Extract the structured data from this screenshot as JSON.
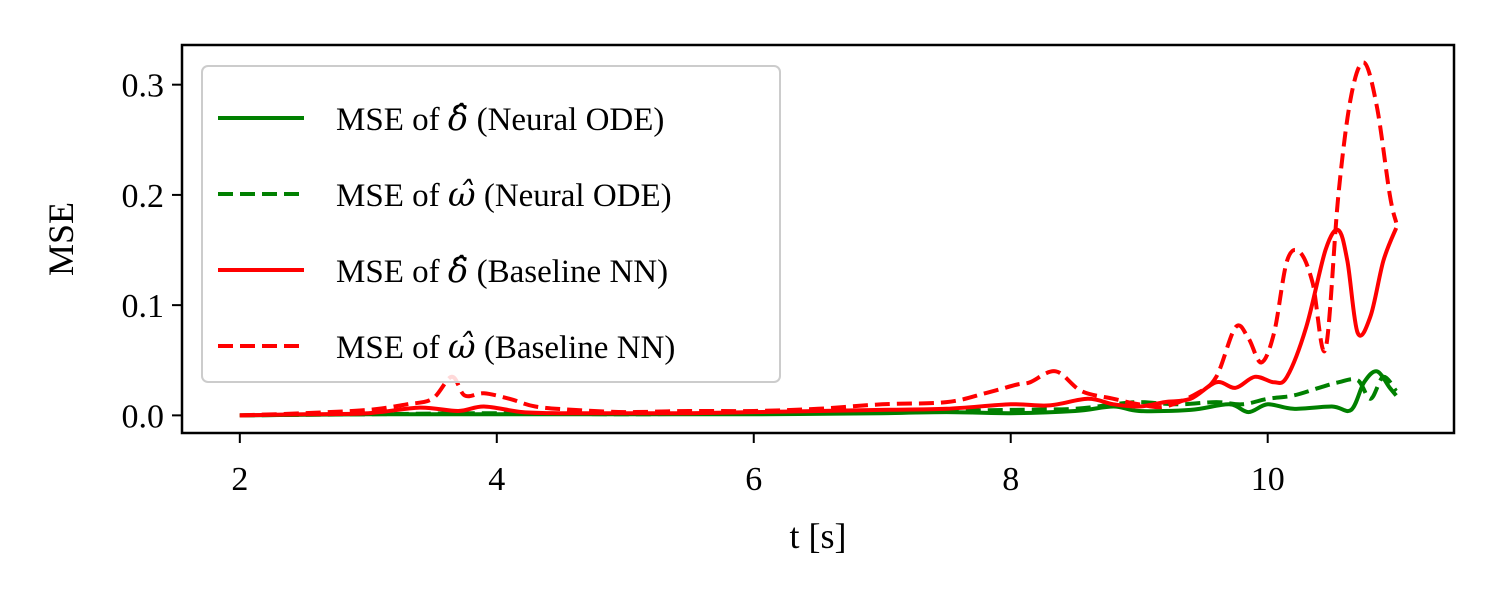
{
  "chart_data": {
    "type": "line",
    "xlabel": "t [s]",
    "ylabel": "MSE",
    "xlim": [
      1.55,
      11.45
    ],
    "ylim": [
      -0.016,
      0.336
    ],
    "xticks": [
      2,
      4,
      6,
      8,
      10
    ],
    "xtick_labels": [
      "2",
      "4",
      "6",
      "8",
      "10"
    ],
    "yticks": [
      0.0,
      0.1,
      0.2,
      0.3
    ],
    "ytick_labels": [
      "0.0",
      "0.1",
      "0.2",
      "0.3"
    ],
    "grid": false,
    "legend_position": "upper-left",
    "series": [
      {
        "name": "MSE of δ̂ (Neural ODE)",
        "legend": {
          "prefix": "MSE of ",
          "symbol": "δ̂",
          "suffix": " (Neural ODE)"
        },
        "color": "#008000",
        "dash": "solid",
        "x": [
          2.0,
          3.0,
          4.0,
          5.0,
          6.0,
          7.0,
          7.5,
          8.0,
          8.5,
          8.8,
          9.0,
          9.4,
          9.7,
          9.85,
          10.0,
          10.2,
          10.5,
          10.65,
          10.75,
          10.85,
          10.95,
          11.0
        ],
        "y": [
          0.0,
          0.001,
          0.001,
          0.001,
          0.001,
          0.002,
          0.003,
          0.002,
          0.004,
          0.008,
          0.004,
          0.005,
          0.01,
          0.003,
          0.01,
          0.006,
          0.008,
          0.005,
          0.03,
          0.04,
          0.025,
          0.018
        ]
      },
      {
        "name": "MSE of ω̂ (Neural ODE)",
        "legend": {
          "prefix": "MSE of ",
          "symbol": "ω̂",
          "suffix": " (Neural ODE)"
        },
        "color": "#008000",
        "dash": "dashed",
        "x": [
          2.0,
          3.0,
          4.0,
          5.0,
          6.0,
          7.0,
          7.5,
          8.0,
          8.5,
          8.8,
          9.0,
          9.3,
          9.6,
          9.8,
          10.0,
          10.2,
          10.4,
          10.55,
          10.7,
          10.8,
          10.9,
          11.0
        ],
        "y": [
          0.0,
          0.001,
          0.002,
          0.001,
          0.002,
          0.003,
          0.004,
          0.005,
          0.006,
          0.01,
          0.012,
          0.01,
          0.012,
          0.01,
          0.015,
          0.018,
          0.025,
          0.03,
          0.032,
          0.015,
          0.035,
          0.022
        ]
      },
      {
        "name": "MSE of δ̂ (Baseline NN)",
        "legend": {
          "prefix": "MSE of ",
          "symbol": "δ̂",
          "suffix": " (Baseline NN)"
        },
        "color": "#ff0000",
        "dash": "solid",
        "x": [
          2.0,
          2.5,
          3.0,
          3.4,
          3.7,
          3.9,
          4.2,
          4.5,
          5.0,
          5.5,
          6.0,
          6.5,
          7.0,
          7.5,
          8.0,
          8.3,
          8.6,
          8.8,
          9.0,
          9.2,
          9.4,
          9.6,
          9.75,
          9.9,
          10.05,
          10.15,
          10.3,
          10.45,
          10.55,
          10.62,
          10.7,
          10.8,
          10.9,
          11.0
        ],
        "y": [
          0.0,
          0.001,
          0.002,
          0.007,
          0.004,
          0.008,
          0.003,
          0.002,
          0.002,
          0.002,
          0.003,
          0.004,
          0.005,
          0.006,
          0.01,
          0.009,
          0.015,
          0.01,
          0.008,
          0.012,
          0.015,
          0.03,
          0.025,
          0.035,
          0.03,
          0.035,
          0.08,
          0.15,
          0.168,
          0.14,
          0.075,
          0.09,
          0.14,
          0.17
        ]
      },
      {
        "name": "MSE of ω̂ (Baseline NN)",
        "legend": {
          "prefix": "MSE of ",
          "symbol": "ω̂",
          "suffix": " (Baseline NN)"
        },
        "color": "#ff0000",
        "dash": "dashed",
        "x": [
          2.0,
          2.5,
          3.0,
          3.3,
          3.5,
          3.65,
          3.75,
          3.9,
          4.1,
          4.3,
          4.6,
          5.0,
          5.5,
          6.0,
          6.5,
          7.0,
          7.5,
          7.8,
          8.05,
          8.15,
          8.35,
          8.55,
          8.8,
          9.0,
          9.2,
          9.45,
          9.6,
          9.75,
          9.85,
          9.95,
          10.05,
          10.15,
          10.25,
          10.35,
          10.45,
          10.55,
          10.65,
          10.75,
          10.85,
          10.95,
          11.0
        ],
        "y": [
          0.0,
          0.002,
          0.005,
          0.01,
          0.015,
          0.035,
          0.018,
          0.02,
          0.015,
          0.008,
          0.005,
          0.003,
          0.004,
          0.004,
          0.006,
          0.01,
          0.012,
          0.02,
          0.028,
          0.03,
          0.04,
          0.022,
          0.015,
          0.01,
          0.008,
          0.02,
          0.035,
          0.08,
          0.07,
          0.048,
          0.075,
          0.14,
          0.148,
          0.12,
          0.06,
          0.2,
          0.29,
          0.32,
          0.28,
          0.2,
          0.175
        ]
      }
    ]
  }
}
